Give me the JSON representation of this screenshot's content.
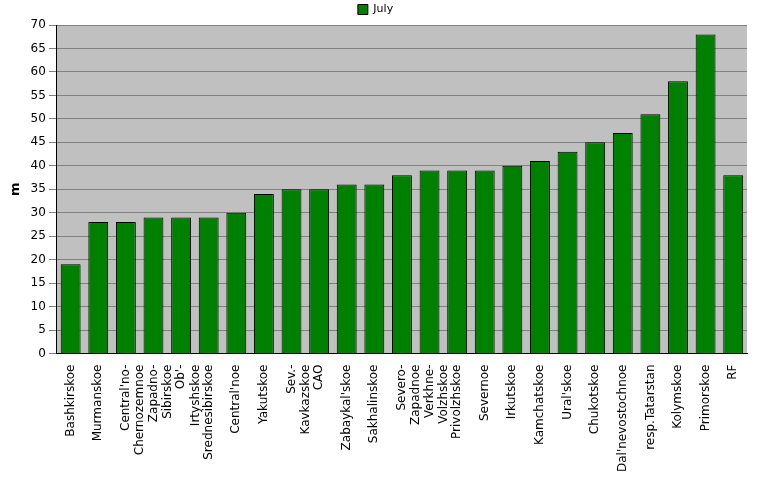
{
  "chart_data": {
    "type": "bar",
    "y_label": "m",
    "categories": [
      "Bashkirskoe",
      "Murmanskoe",
      "Central'no-Chernozemnoe",
      "Zapadno-Sibirskoe",
      "Ob'-Irtyshskoe",
      "Srednesibirskoe",
      "Central'noe",
      "Yakutskoe",
      "Sev.-Kavkazskoe",
      "CAO",
      "Zabaykal'skoe",
      "Sakhalinskoe",
      "Severo-Zapadnoe",
      "Verkhne-Volzhskoe",
      "Privolzhskoe",
      "Severnoe",
      "Irkutskoe",
      "Kamchatskoe",
      "Ural'skoe",
      "Chukotskoe",
      "Dal'nevostochnoe",
      "resp.Tatarstan",
      "Kolymskoe",
      "Primorskoe",
      "RF"
    ],
    "series": [
      {
        "name": "July",
        "color": "#008000",
        "values": [
          19,
          28,
          28,
          29,
          29,
          29,
          30,
          34,
          35,
          35,
          36,
          36,
          38,
          39,
          39,
          39,
          40,
          41,
          43,
          45,
          47,
          51,
          58,
          68,
          38
        ]
      }
    ],
    "ylim": [
      0,
      70
    ],
    "yticks": [
      0,
      5,
      10,
      15,
      20,
      25,
      30,
      35,
      40,
      45,
      50,
      55,
      60,
      65,
      70
    ],
    "grid": true,
    "legend": "top"
  }
}
